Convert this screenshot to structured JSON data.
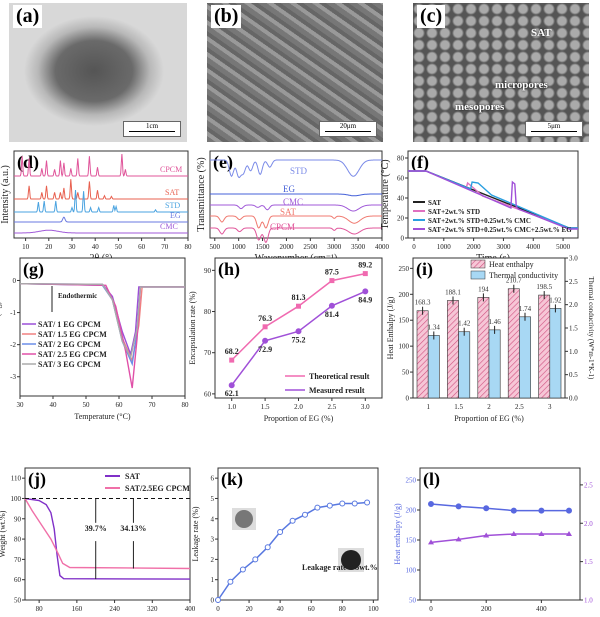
{
  "photos": [
    {
      "label": "(a)",
      "scale": "1cm"
    },
    {
      "label": "(b)",
      "scale": "20μm"
    },
    {
      "label": "(c)",
      "scale": "5μm",
      "annotations": [
        "SAT",
        "micropores",
        "mesopores"
      ]
    }
  ],
  "chart_data": [
    {
      "panel": "(d)",
      "type": "line",
      "xlabel": "2θ (°)",
      "ylabel": "Intensity (a.u.)",
      "xlim": [
        5,
        80
      ],
      "xticks": [
        "10",
        "20",
        "30",
        "40",
        "50",
        "60",
        "70",
        "80"
      ],
      "series": [
        {
          "name": "CPCM",
          "color": "#e0559a",
          "peaks": [
            [
              8.5,
              0.9
            ],
            [
              11.5,
              0.8
            ],
            [
              17,
              0.35
            ],
            [
              19,
              0.7
            ],
            [
              22.5,
              0.3
            ],
            [
              25,
              0.7
            ],
            [
              26.5,
              0.6
            ],
            [
              29.5,
              0.35
            ],
            [
              32.5,
              0.8
            ],
            [
              37.5,
              0.9
            ],
            [
              41,
              0.4
            ],
            [
              51.5,
              1.0
            ],
            [
              53,
              0.3
            ]
          ]
        },
        {
          "name": "SAT",
          "color": "#e8604f",
          "peaks": [
            [
              11.5,
              0.6
            ],
            [
              17,
              0.3
            ],
            [
              19,
              0.6
            ],
            [
              22.5,
              0.3
            ],
            [
              25,
              0.3
            ],
            [
              26.5,
              0.5
            ],
            [
              29.5,
              0.9
            ],
            [
              32.5,
              0.3
            ],
            [
              37.5,
              0.8
            ],
            [
              41,
              0.4
            ],
            [
              44,
              0.15
            ],
            [
              47,
              0.12
            ]
          ]
        },
        {
          "name": "STD",
          "color": "#4aa3e0",
          "peaks": [
            [
              15.5,
              0.45
            ],
            [
              18,
              0.5
            ],
            [
              23,
              0.5
            ],
            [
              30,
              0.2
            ],
            [
              31.5,
              1.0
            ],
            [
              35,
              0.95
            ],
            [
              38,
              0.2
            ],
            [
              41.5,
              0.2
            ],
            [
              48,
              0.3
            ],
            [
              49,
              0.25
            ],
            [
              66,
              0.1
            ]
          ]
        },
        {
          "name": "EG",
          "color": "#6a78e0",
          "peaks": [
            [
              26.5,
              0.6
            ]
          ]
        },
        {
          "name": "CMC",
          "color": "#a05ad8",
          "peaks": [
            [
              20,
              0.35
            ]
          ]
        }
      ]
    },
    {
      "panel": "(e)",
      "type": "line",
      "xlabel": "Wavenumber (cm⁻¹)",
      "ylabel": "Transmittance (%)",
      "xlim": [
        400,
        4000
      ],
      "xticks": [
        "500",
        "1000",
        "1500",
        "2000",
        "2500",
        "3000",
        "3500",
        "4000"
      ],
      "series": [
        {
          "name": "STD",
          "color": "#7b8be8",
          "dips": [
            [
              850,
              0.9
            ],
            [
              1000,
              0.9
            ],
            [
              1100,
              0.7
            ],
            [
              1250,
              0.6
            ],
            [
              1450,
              0.8
            ],
            [
              1650,
              0.4
            ],
            [
              3400,
              0.9
            ]
          ]
        },
        {
          "name": "EG",
          "color": "#4460d8",
          "dips": [
            [
              3420,
              0.15
            ]
          ]
        },
        {
          "name": "CMC",
          "color": "#a05ad8",
          "dips": [
            [
              1050,
              0.3
            ],
            [
              1400,
              0.2
            ],
            [
              1600,
              0.4
            ],
            [
              3400,
              0.5
            ]
          ]
        },
        {
          "name": "SAT",
          "color": "#f07a70",
          "dips": [
            [
              650,
              0.5
            ],
            [
              1020,
              0.3
            ],
            [
              1420,
              1.0
            ],
            [
              1570,
              1.0
            ],
            [
              3000,
              0.2
            ],
            [
              3420,
              0.6
            ]
          ]
        },
        {
          "name": "CPCM",
          "color": "#e0559a",
          "dips": [
            [
              650,
              0.5
            ],
            [
              1020,
              0.3
            ],
            [
              1420,
              1.0
            ],
            [
              1570,
              1.2
            ],
            [
              3000,
              0.2
            ],
            [
              3420,
              0.5
            ]
          ]
        }
      ]
    },
    {
      "panel": "(f)",
      "type": "line",
      "xlabel": "Time (s)",
      "ylabel": "Temperature (°C)",
      "xlim": [
        -200,
        5500
      ],
      "ylim": [
        0,
        87
      ],
      "xticks": [
        "0",
        "1000",
        "2000",
        "3000",
        "4000",
        "5000"
      ],
      "yticks": [
        "0",
        "20",
        "40",
        "60",
        "80"
      ],
      "series": [
        {
          "name": "SAT",
          "color": "#222222",
          "points": [
            [
              -200,
              67
            ],
            [
              400,
              67
            ],
            [
              5200,
              10
            ],
            [
              5500,
              10
            ]
          ]
        },
        {
          "name": "SAT+2wt.% STD",
          "color": "#e070c0",
          "points": [
            [
              -200,
              67
            ],
            [
              400,
              67
            ],
            [
              1750,
              50
            ],
            [
              1800,
              55
            ],
            [
              2000,
              50
            ],
            [
              2300,
              42
            ],
            [
              5200,
              10
            ],
            [
              5500,
              10
            ]
          ]
        },
        {
          "name": "SAT+2wt.% STD+0.25wt.% CMC",
          "color": "#2a9fe0",
          "points": [
            [
              -200,
              67
            ],
            [
              400,
              67
            ],
            [
              1900,
              49
            ],
            [
              1950,
              56
            ],
            [
              2150,
              55
            ],
            [
              2600,
              43
            ],
            [
              5200,
              10
            ],
            [
              5500,
              10
            ]
          ]
        },
        {
          "name": "SAT+2wt.% STD+0.25wt.% CMC+2.5wt.% EG",
          "color": "#a050d8",
          "points": [
            [
              -200,
              67
            ],
            [
              400,
              67
            ],
            [
              3250,
              30
            ],
            [
              3300,
              56
            ],
            [
              3380,
              54
            ],
            [
              3430,
              31
            ],
            [
              3500,
              29
            ],
            [
              5200,
              9
            ],
            [
              5500,
              9
            ]
          ]
        }
      ]
    },
    {
      "panel": "(g)",
      "type": "line",
      "xlabel": "Temperature (°C)",
      "ylabel": "Heat Flow (J/g)",
      "xlim": [
        30,
        80
      ],
      "ylim": [
        -3.6,
        0.7
      ],
      "xticks": [
        "30",
        "40",
        "50",
        "60",
        "70",
        "80"
      ],
      "yticks": [
        "0",
        "-1",
        "-2",
        "-3"
      ],
      "annotation": "Endothermic",
      "series": [
        {
          "name": "SAT/ 1 EG    CPCM",
          "color": "#9b4fd8",
          "points": [
            [
              30,
              -0.1
            ],
            [
              55,
              -0.12
            ],
            [
              58,
              -0.5
            ],
            [
              61,
              -1.6
            ],
            [
              63.5,
              -2.3
            ],
            [
              65,
              -1.6
            ],
            [
              66,
              -0.2
            ],
            [
              80,
              -0.2
            ]
          ]
        },
        {
          "name": "SAT/ 1.5 EG CPCM",
          "color": "#f08080",
          "points": [
            [
              30,
              -0.1
            ],
            [
              55,
              -0.14
            ],
            [
              58,
              -0.6
            ],
            [
              61,
              -1.8
            ],
            [
              64,
              -2.5
            ],
            [
              66,
              -1.4
            ],
            [
              67,
              -0.2
            ],
            [
              80,
              -0.2
            ]
          ]
        },
        {
          "name": "SAT/ 2 EG    CPCM",
          "color": "#6a8ee8",
          "points": [
            [
              30,
              -0.1
            ],
            [
              55,
              -0.15
            ],
            [
              58,
              -0.6
            ],
            [
              61,
              -1.9
            ],
            [
              64,
              -2.6
            ],
            [
              65.5,
              -1.6
            ],
            [
              66.5,
              -0.2
            ],
            [
              80,
              -0.2
            ]
          ]
        },
        {
          "name": "SAT/ 2.5 EG CPCM",
          "color": "#e050a8",
          "points": [
            [
              30,
              -0.1
            ],
            [
              56,
              -0.15
            ],
            [
              59,
              -0.8
            ],
            [
              62,
              -2.2
            ],
            [
              64,
              -3.35
            ],
            [
              65.5,
              -1.8
            ],
            [
              66.5,
              -0.2
            ],
            [
              80,
              -0.2
            ]
          ]
        },
        {
          "name": "SAT/ 3 EG    CPCM",
          "color": "#aaaaaa",
          "points": [
            [
              30,
              -0.1
            ],
            [
              55,
              -0.12
            ],
            [
              58,
              -0.6
            ],
            [
              61,
              -1.9
            ],
            [
              63.5,
              -2.4
            ],
            [
              65.5,
              -1.5
            ],
            [
              66.5,
              -0.2
            ],
            [
              80,
              -0.2
            ]
          ]
        }
      ]
    },
    {
      "panel": "(h)",
      "type": "line",
      "xlabel": "Proportion of EG (%)",
      "ylabel": "Encapsulation rate (%)",
      "xlim": [
        0.75,
        3.25
      ],
      "ylim": [
        59,
        93
      ],
      "xticks": [
        "1.0",
        "1.5",
        "2.0",
        "2.5",
        "3.0"
      ],
      "yticks": [
        "60",
        "70",
        "80",
        "90"
      ],
      "series": [
        {
          "name": "Theoretical result",
          "color": "#f06ab0",
          "marker": "square",
          "x": [
            1,
            1.5,
            2,
            2.5,
            3
          ],
          "y": [
            68.2,
            76.3,
            81.3,
            87.5,
            89.2
          ],
          "labels": [
            "68.2",
            "76.3",
            "81.3",
            "87.5",
            "89.2"
          ]
        },
        {
          "name": "Measured result",
          "color": "#a050d8",
          "marker": "circle",
          "x": [
            1,
            1.5,
            2,
            2.5,
            3
          ],
          "y": [
            62.1,
            72.9,
            75.2,
            81.4,
            84.9
          ],
          "labels": [
            "62.1",
            "72.9",
            "75.2",
            "81.4",
            "84.9"
          ]
        }
      ]
    },
    {
      "panel": "(i)",
      "type": "bar",
      "xlabel": "Proportion of EG (%)",
      "ylabel": "Heat Enthalpy (J/g)",
      "y2label": "Thermal conductivity (W*m-1*K-1)",
      "categories": [
        "1",
        "1.5",
        "2",
        "2.5",
        "3"
      ],
      "ylim": [
        0,
        270
      ],
      "y2lim": [
        0,
        3.0
      ],
      "yticks": [
        "0",
        "50",
        "100",
        "150",
        "200",
        "250"
      ],
      "y2ticks": [
        "0.0",
        "0.5",
        "1.0",
        "1.5",
        "2.0",
        "2.5",
        "3.0"
      ],
      "series": [
        {
          "name": "Heat enthalpy",
          "color": "#f0a8c0",
          "values": [
            168.3,
            188.1,
            194,
            210.7,
            198.5
          ],
          "labels": [
            "168.3",
            "188.1",
            "194",
            "210.7",
            "198.5"
          ]
        },
        {
          "name": "Thermal conductivity",
          "color": "#a8d8f4",
          "axis": "right",
          "values": [
            1.34,
            1.42,
            1.46,
            1.74,
            1.92
          ],
          "labels": [
            "1.34",
            "1.42",
            "1.46",
            "1.74",
            "1.92"
          ]
        }
      ]
    },
    {
      "panel": "(j)",
      "type": "line",
      "xlabel": "Temperature (°C)",
      "ylabel": "Weight  (wt.%)",
      "xlim": [
        50,
        400
      ],
      "ylim": [
        50,
        115
      ],
      "xticks": [
        "80",
        "160",
        "240",
        "320",
        "400"
      ],
      "yticks": [
        "50",
        "60",
        "70",
        "80",
        "90",
        "100",
        "110"
      ],
      "annotations": [
        "39.7%",
        "34.13%"
      ],
      "series": [
        {
          "name": "SAT",
          "color": "#8030c8",
          "points": [
            [
              50,
              100
            ],
            [
              80,
              99
            ],
            [
              95,
              97
            ],
            [
              105,
              93
            ],
            [
              112,
              85
            ],
            [
              118,
              72
            ],
            [
              124,
              62
            ],
            [
              132,
              60.5
            ],
            [
              400,
              60.3
            ]
          ]
        },
        {
          "name": "SAT/2.5EG CPCM",
          "color": "#f070a8",
          "points": [
            [
              50,
              100
            ],
            [
              65,
              94
            ],
            [
              85,
              87
            ],
            [
              105,
              80
            ],
            [
              120,
              73
            ],
            [
              130,
              68
            ],
            [
              145,
              66
            ],
            [
              400,
              65.5
            ]
          ]
        }
      ]
    },
    {
      "panel": "(k)",
      "type": "line",
      "xlabel": "Time (h)",
      "ylabel": "Leakage rate (%)",
      "xlim": [
        0,
        103
      ],
      "ylim": [
        0,
        6.5
      ],
      "xticks": [
        "0",
        "20",
        "40",
        "60",
        "80",
        "100"
      ],
      "yticks": [
        "0",
        "1",
        "2",
        "3",
        "4",
        "5",
        "6"
      ],
      "annotation": "Leakage rate < 5wt.%",
      "series": [
        {
          "name": "",
          "color": "#5878e0",
          "x": [
            0,
            8,
            16,
            24,
            32,
            40,
            48,
            56,
            64,
            72,
            80,
            88,
            96
          ],
          "y": [
            0,
            0.9,
            1.5,
            2.0,
            2.6,
            3.35,
            3.9,
            4.2,
            4.55,
            4.65,
            4.75,
            4.75,
            4.8
          ]
        }
      ]
    },
    {
      "panel": "(l)",
      "type": "line",
      "xlabel": "Cycle times",
      "ylabel": "Heat enthalpy (J/g)",
      "y2label": "Thermal conductivity (W/m⁻¹K⁻¹)",
      "xlim": [
        -40,
        540
      ],
      "ylim": [
        50,
        270
      ],
      "y2lim": [
        1.0,
        2.72
      ],
      "xticks": [
        "0",
        "200",
        "400"
      ],
      "yticks": [
        "50",
        "100",
        "150",
        "200",
        "250"
      ],
      "y2ticks": [
        "1.0",
        "1.5",
        "2.0",
        "2.5"
      ],
      "series": [
        {
          "name": "Heat enthalpy",
          "color": "#5868e0",
          "marker": "circle",
          "x": [
            0,
            100,
            200,
            300,
            400,
            500
          ],
          "y": [
            210,
            206,
            203,
            199,
            199,
            199
          ]
        },
        {
          "name": "Thermal conductivity",
          "color": "#a050d8",
          "marker": "triangle",
          "axis": "right",
          "x": [
            0,
            100,
            200,
            300,
            400,
            500
          ],
          "y": [
            1.75,
            1.79,
            1.84,
            1.86,
            1.86,
            1.86
          ]
        }
      ]
    }
  ]
}
